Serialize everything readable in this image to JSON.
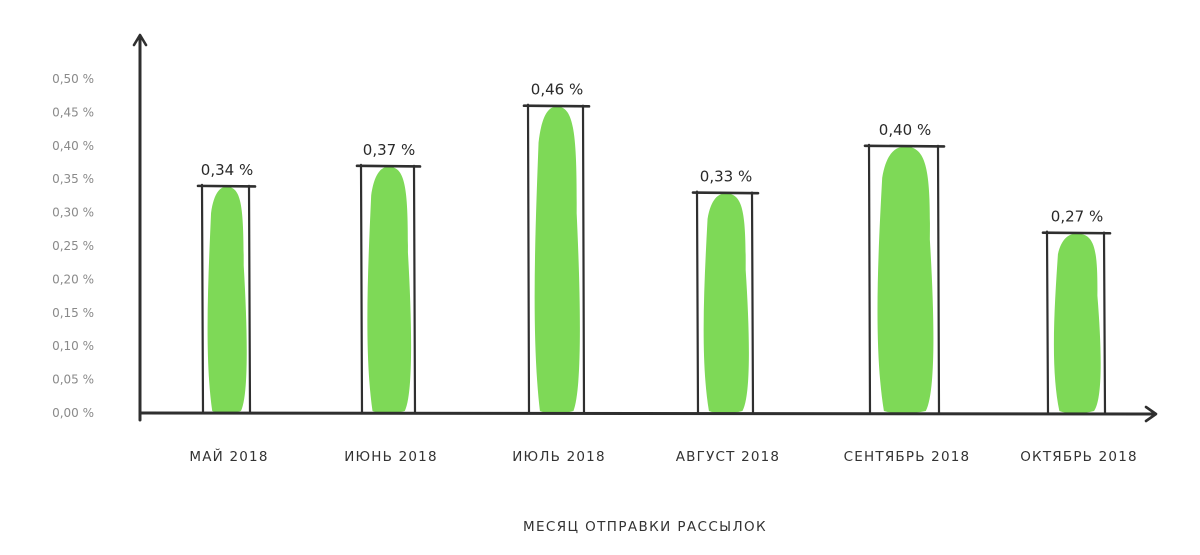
{
  "chart_data": {
    "type": "bar",
    "categories": [
      "МАЙ 2018",
      "ИЮНЬ 2018",
      "ИЮЛЬ 2018",
      "АВГУСТ 2018",
      "СЕНТЯБРЬ 2018",
      "ОКТЯБРЬ 2018"
    ],
    "values": [
      0.34,
      0.37,
      0.46,
      0.33,
      0.4,
      0.27
    ],
    "value_labels": [
      "0,34 %",
      "0,37 %",
      "0,46 %",
      "0,33 %",
      "0,40 %",
      "0,27 %"
    ],
    "y_ticks": [
      0,
      0.05,
      0.1,
      0.15,
      0.2,
      0.25,
      0.3,
      0.35,
      0.4,
      0.45,
      0.5
    ],
    "y_tick_labels": [
      "0,00 %",
      "0,05 %",
      "0,10 %",
      "0,15 %",
      "0,20 %",
      "0,25 %",
      "0,30 %",
      "0,35 %",
      "0,40 %",
      "0,45 %",
      "0,50 %"
    ],
    "ylim": [
      0,
      0.5
    ],
    "xlabel": "МЕСЯЦ ОТПРАВКИ РАССЫЛОК",
    "ylabel": "",
    "title": "",
    "grid": false,
    "colors": {
      "fill": "#7ed957",
      "outline": "#2f2f2f",
      "axis": "#2f2f2f"
    }
  }
}
